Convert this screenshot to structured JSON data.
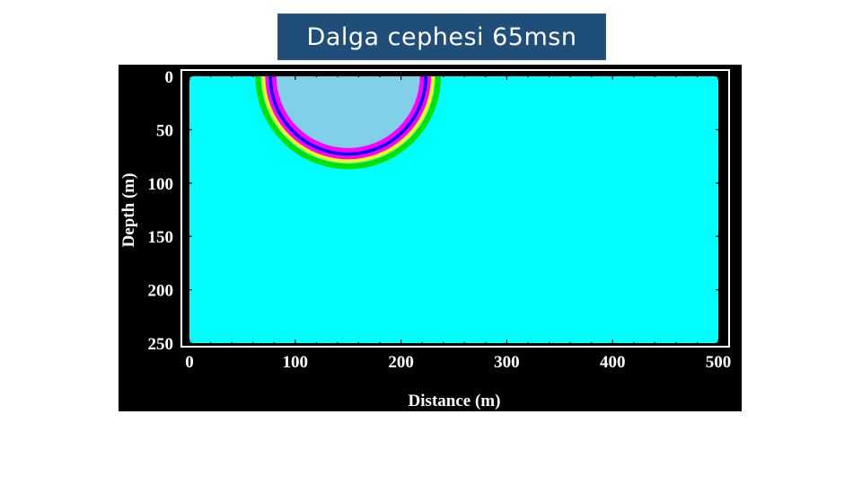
{
  "slide": {
    "title": "Dalga cephesi 65msn"
  },
  "plot": {
    "xlabel": "Distance (m)",
    "ylabel": "Depth (m)",
    "x_ticks": [
      "0",
      "100",
      "200",
      "300",
      "400",
      "500"
    ],
    "y_ticks": [
      "0",
      "50",
      "100",
      "150",
      "200",
      "250"
    ],
    "x_range": [
      0,
      500
    ],
    "y_range": [
      0,
      250
    ],
    "background_color": "#00ffff",
    "frame_color": "#000000",
    "wavefront": {
      "source_x_m": 150,
      "source_depth_m": 0,
      "radius_m": 75,
      "ring_colors": [
        "#00e000",
        "#ffff00",
        "#ff00ff",
        "#0000ff",
        "#ff00ff",
        "#7fd0e8"
      ]
    }
  }
}
